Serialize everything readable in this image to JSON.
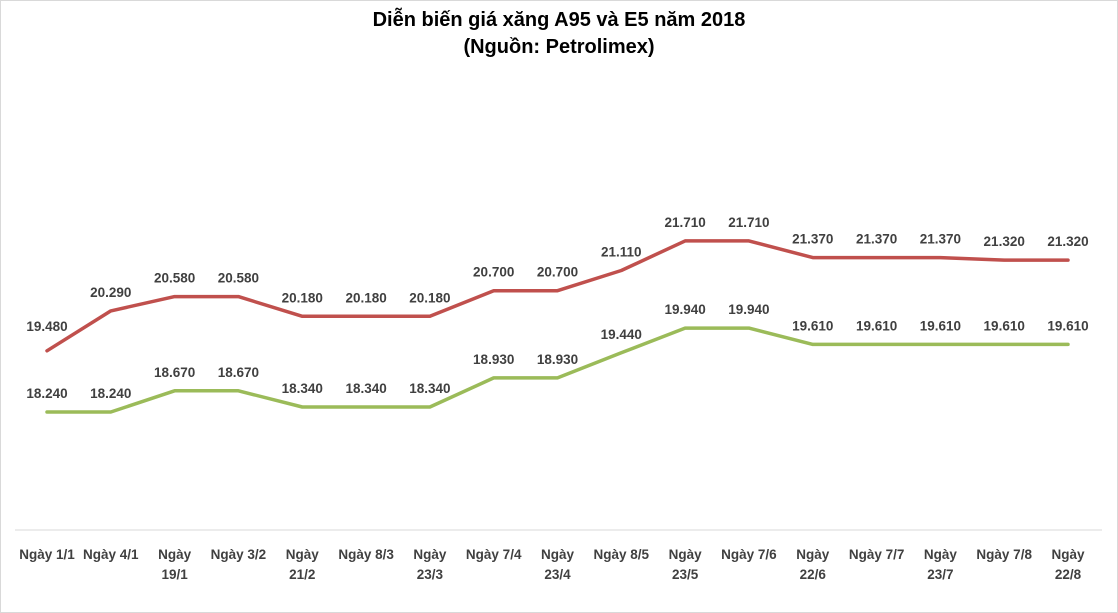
{
  "chart_data": {
    "type": "line",
    "title": "Diễn biến giá xăng A95 và E5 năm 2018",
    "subtitle": "(Nguồn:  Petrolimex)",
    "categories": [
      [
        "Ngày 1/1"
      ],
      [
        "Ngày 4/1"
      ],
      [
        "Ngày",
        "19/1"
      ],
      [
        "Ngày 3/2"
      ],
      [
        "Ngày",
        "21/2"
      ],
      [
        "Ngày 8/3"
      ],
      [
        "Ngày",
        "23/3"
      ],
      [
        "Ngày 7/4"
      ],
      [
        "Ngày",
        "23/4"
      ],
      [
        "Ngày 8/5"
      ],
      [
        "Ngày",
        "23/5"
      ],
      [
        "Ngày 7/6"
      ],
      [
        "Ngày",
        "22/6"
      ],
      [
        "Ngày 7/7"
      ],
      [
        "Ngày",
        "23/7"
      ],
      [
        "Ngày 7/8"
      ],
      [
        "Ngày",
        "22/8"
      ]
    ],
    "series": [
      {
        "name": "A95",
        "color": "#c0504d",
        "values": [
          19480,
          20290,
          20580,
          20580,
          20180,
          20180,
          20180,
          20700,
          20700,
          21110,
          21710,
          21710,
          21370,
          21370,
          21370,
          21320,
          21320
        ],
        "labels": [
          "19.480",
          "20.290",
          "20.580",
          "20.580",
          "20.180",
          "20.180",
          "20.180",
          "20.700",
          "20.700",
          "21.110",
          "21.710",
          "21.710",
          "21.370",
          "21.370",
          "21.370",
          "21.320",
          "21.320"
        ]
      },
      {
        "name": "E5",
        "color": "#9bbb59",
        "values": [
          18240,
          18240,
          18670,
          18670,
          18340,
          18340,
          18340,
          18930,
          18930,
          19440,
          19940,
          19940,
          19610,
          19610,
          19610,
          19610,
          19610
        ],
        "labels": [
          "18.240",
          "18.240",
          "18.670",
          "18.670",
          "18.340",
          "18.340",
          "18.340",
          "18.930",
          "18.930",
          "19.440",
          "19.940",
          "19.940",
          "19.610",
          "19.610",
          "19.610",
          "19.610",
          "19.610"
        ]
      }
    ],
    "grid": false,
    "legend": "none"
  }
}
